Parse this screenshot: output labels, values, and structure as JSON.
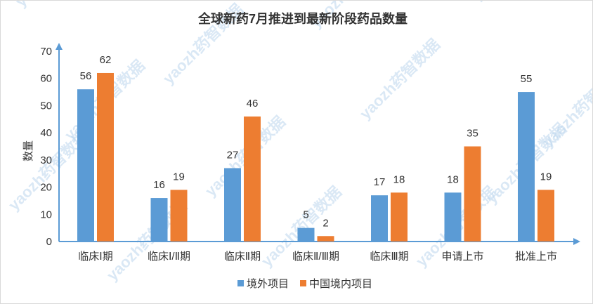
{
  "chart_data": {
    "type": "bar",
    "title": "全球新药7月推进到最新阶段药品数量",
    "xlabel": "",
    "ylabel": "数量",
    "ylim": [
      0,
      70
    ],
    "yticks": [
      0,
      10,
      20,
      30,
      40,
      50,
      60,
      70
    ],
    "grid": false,
    "legend_position": "bottom",
    "categories": [
      "临床Ⅰ期",
      "临床Ⅰ/Ⅱ期",
      "临床Ⅱ期",
      "临床Ⅱ/Ⅲ期",
      "临床Ⅲ期",
      "申请上市",
      "批准上市"
    ],
    "series": [
      {
        "name": "境外项目",
        "color": "#5b9bd5",
        "values": [
          56,
          16,
          27,
          5,
          17,
          18,
          55
        ]
      },
      {
        "name": "中国境内项目",
        "color": "#ed7d31",
        "values": [
          62,
          19,
          46,
          2,
          18,
          35,
          19
        ]
      }
    ],
    "axis_color": "#5b9bd5"
  },
  "watermark": {
    "text": "yaozh药智数据",
    "color": "#bcd6ee"
  }
}
